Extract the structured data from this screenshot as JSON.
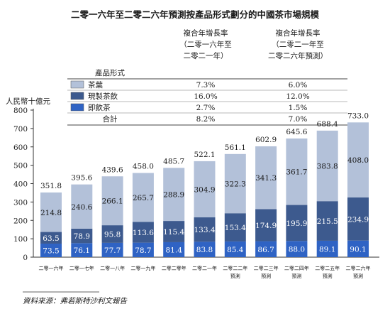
{
  "chart_data": {
    "type": "bar",
    "stacked": true,
    "title": "二零一六年至二零二六年預測按產品形式劃分的中國茶市場規模",
    "ylabel": "人民幣十億元",
    "ylim": [
      0,
      800
    ],
    "yticks": [
      0,
      100,
      200,
      300,
      400,
      500,
      600,
      700,
      800
    ],
    "grid": false,
    "categories": [
      [
        "二零一六年"
      ],
      [
        "二零一七年"
      ],
      [
        "二零一八年"
      ],
      [
        "二零一九年"
      ],
      [
        "二零二零年"
      ],
      [
        "二零二一年"
      ],
      [
        "二零二二年",
        "預測"
      ],
      [
        "二零二三年",
        "預測"
      ],
      [
        "二零二四年",
        "預測"
      ],
      [
        "二零二五年",
        "預測"
      ],
      [
        "二零二六年",
        "預測"
      ]
    ],
    "series": [
      {
        "name": "即飲茶",
        "color": "#2f63c4",
        "values": [
          73.5,
          76.1,
          77.7,
          78.7,
          81.4,
          83.8,
          85.4,
          86.7,
          88.0,
          89.1,
          90.1
        ]
      },
      {
        "name": "現製茶飲",
        "color": "#3d5a8e",
        "values": [
          63.5,
          78.9,
          95.8,
          113.6,
          115.4,
          133.4,
          153.4,
          174.9,
          195.9,
          215.5,
          234.9
        ]
      },
      {
        "name": "茶葉",
        "color": "#b3c1d9",
        "values": [
          214.8,
          240.6,
          266.1,
          265.7,
          288.9,
          304.9,
          322.3,
          341.3,
          361.7,
          383.8,
          408.0
        ]
      }
    ],
    "totals": [
      351.8,
      395.6,
      439.6,
      458.0,
      485.7,
      522.1,
      561.1,
      602.9,
      645.6,
      688.4,
      733.0
    ],
    "legend_table": {
      "header_product": "產品形式",
      "header_cagr1": [
        "複合年增長率",
        "（二零一六年至",
        "二零二一年）"
      ],
      "header_cagr2": [
        "複合年增長率",
        "（二零二一年至",
        "二零二六年預測）"
      ],
      "rows": [
        {
          "label": "茶葉",
          "color": "#b3c1d9",
          "cagr1": "7.3%",
          "cagr2": "6.0%"
        },
        {
          "label": "現製茶飲",
          "color": "#3d5a8e",
          "cagr1": "16.0%",
          "cagr2": "12.0%"
        },
        {
          "label": "即飲茶",
          "color": "#2f63c4",
          "cagr1": "2.7%",
          "cagr2": "1.5%"
        }
      ],
      "total_row": {
        "label": "合計",
        "cagr1": "8.2%",
        "cagr2": "7.0%"
      }
    },
    "source": "資料來源：弗若斯特沙利文報告"
  }
}
